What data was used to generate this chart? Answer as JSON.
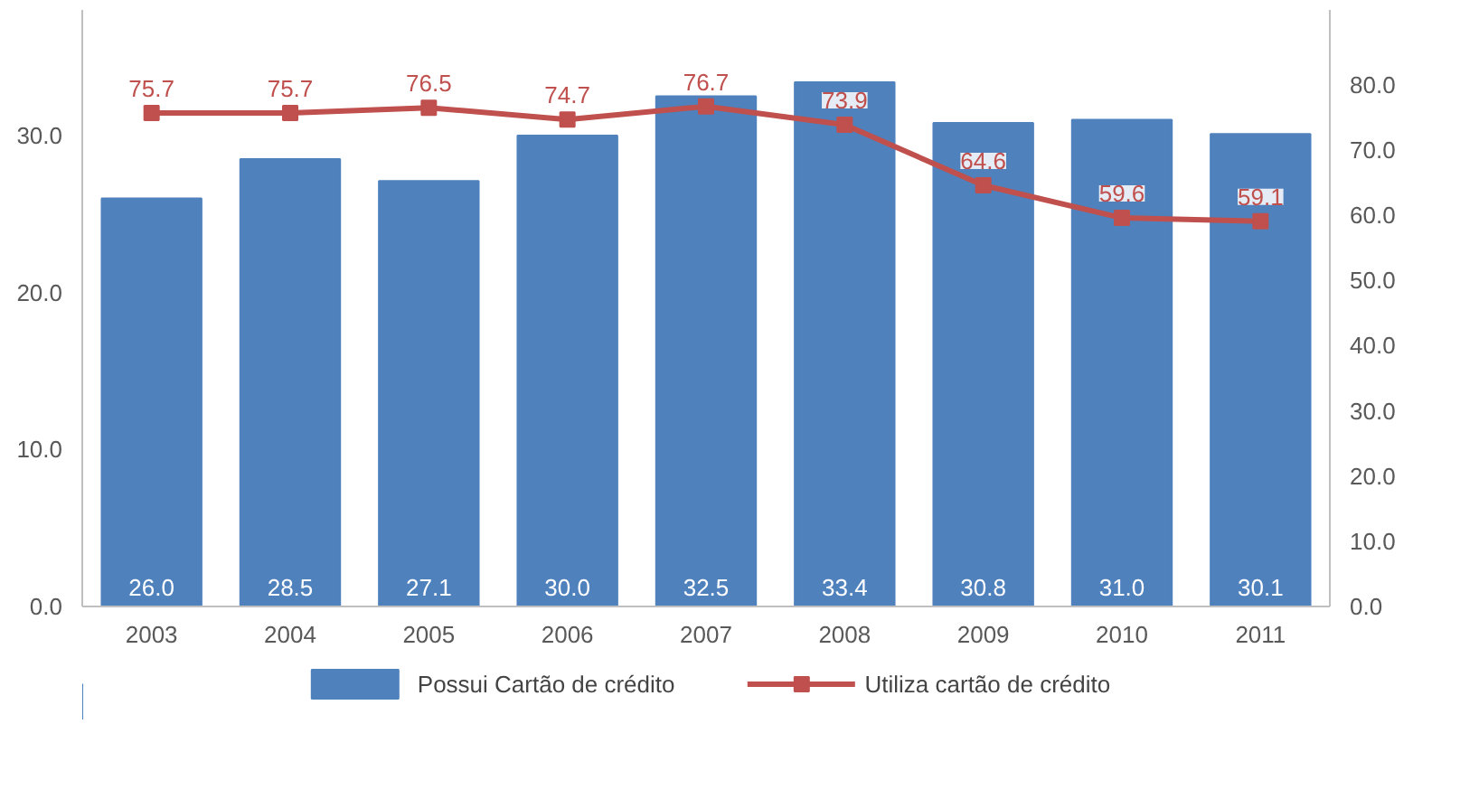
{
  "chart_data": {
    "type": "bar",
    "categories": [
      "2003",
      "2004",
      "2005",
      "2006",
      "2007",
      "2008",
      "2009",
      "2010",
      "2011"
    ],
    "series": [
      {
        "name": "Possui Cartão de crédito",
        "color": "#4f81bd",
        "values": [
          26.0,
          28.5,
          27.1,
          30.0,
          32.5,
          33.4,
          30.8,
          31.0,
          30.1
        ],
        "value_labels": [
          "26.0",
          "28.5",
          "27.1",
          "30.0",
          "32.5",
          "33.4",
          "30.8",
          "31.0",
          "30.1"
        ]
      },
      {
        "name": "Utiliza cartão de crédito",
        "type": "line",
        "axis": "y2",
        "color": "#c0504d",
        "values": [
          75.7,
          75.7,
          76.5,
          74.7,
          76.7,
          73.9,
          64.6,
          59.6,
          59.1
        ],
        "value_labels": [
          "75.7",
          "75.7",
          "76.5",
          "74.7",
          "76.7",
          "73.9",
          "64.6",
          "59.6",
          "59.1"
        ]
      }
    ],
    "ylim": [
      0,
      38
    ],
    "yticks": [
      {
        "value": 0,
        "label": "0.0"
      },
      {
        "value": 10,
        "label": "10.0"
      },
      {
        "value": 20,
        "label": "20.0"
      },
      {
        "value": 30,
        "label": "30.0"
      }
    ],
    "y2lim": [
      0,
      91.5
    ],
    "y2ticks": [
      {
        "value": 0,
        "label": "0.0"
      },
      {
        "value": 10,
        "label": "10.0"
      },
      {
        "value": 20,
        "label": "20.0"
      },
      {
        "value": 30,
        "label": "30.0"
      },
      {
        "value": 40,
        "label": "40.0"
      },
      {
        "value": 50,
        "label": "50.0"
      },
      {
        "value": 60,
        "label": "60.0"
      },
      {
        "value": 70,
        "label": "70.0"
      },
      {
        "value": 80,
        "label": "80.0"
      }
    ],
    "legend": "bottom",
    "grid": false,
    "marker": "square"
  }
}
